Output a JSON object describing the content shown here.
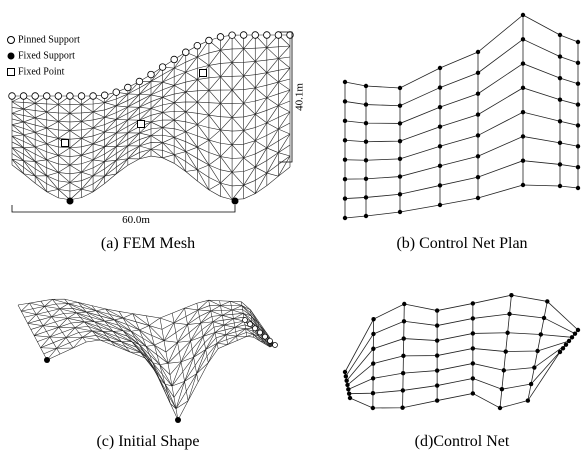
{
  "legend": {
    "pinned": "Pinned Support",
    "fixed_support": "Fixed Support",
    "fixed_point": "Fixed Point"
  },
  "dimensions": {
    "height": "40.1m",
    "width": "60.0m"
  },
  "captions": {
    "a": "(a) FEM Mesh",
    "b": "(b) Control Net Plan",
    "c": "(c) Initial Shape",
    "d": "(d)Control Net"
  }
}
